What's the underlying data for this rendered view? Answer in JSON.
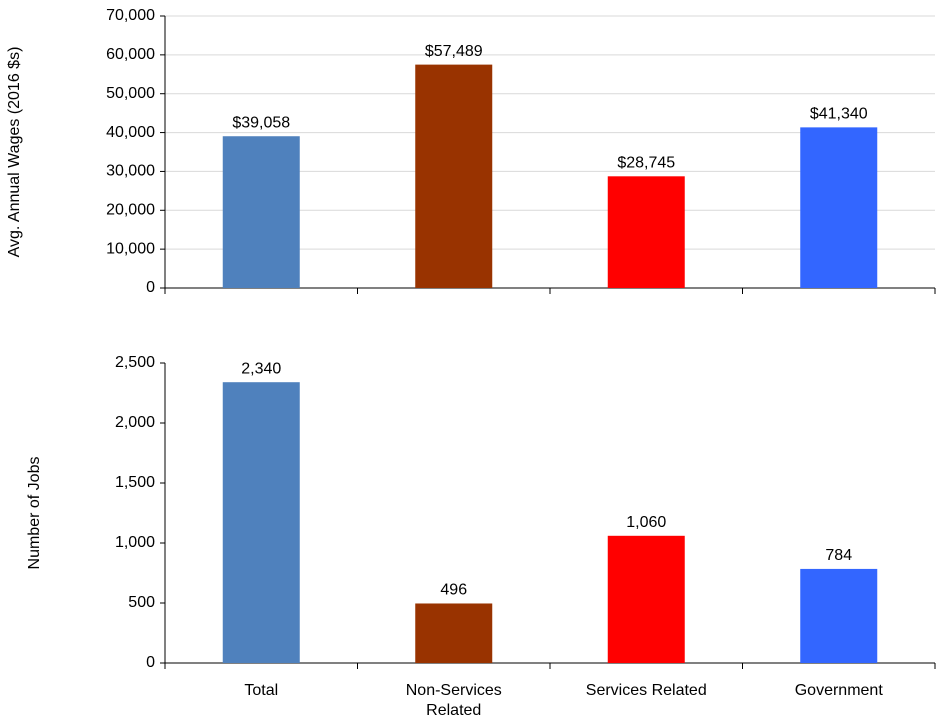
{
  "chart_data": [
    {
      "type": "bar",
      "y_label": "Avg. Annual Wages (2016 $s)",
      "categories": [
        null,
        null,
        null,
        null
      ],
      "values": [
        39058,
        57489,
        28745,
        41340
      ],
      "value_labels": [
        "$39,058",
        "$57,489",
        "$28,745",
        "$41,340"
      ],
      "colors": [
        "#4f81bd",
        "#993300",
        "#ff0000",
        "#3366ff"
      ],
      "ylim": [
        0,
        70000
      ],
      "yticks": [
        0,
        {
          "value": 10000,
          "label": "10,000"
        },
        {
          "value": 20000,
          "label": "20,000"
        },
        {
          "value": 30000,
          "label": "30,000"
        },
        {
          "value": 40000,
          "label": "40,000"
        },
        {
          "value": 50000,
          "label": "50,000"
        },
        {
          "value": 60000,
          "label": "60,000"
        },
        {
          "value": 70000,
          "label": "70,000"
        }
      ],
      "grid": true
    },
    {
      "type": "bar",
      "y_label": "Number of Jobs",
      "categories": [
        "Total",
        "Non-Services Related",
        "Services Related",
        "Government"
      ],
      "values": [
        2340,
        496,
        1060,
        784
      ],
      "value_labels": [
        "2,340",
        "496",
        "1,060",
        "784"
      ],
      "colors": [
        "#4f81bd",
        "#993300",
        "#ff0000",
        "#3366ff"
      ],
      "ylim": [
        0,
        2500
      ],
      "yticks": [
        0,
        500,
        {
          "value": 1000,
          "label": "1,000"
        },
        {
          "value": 1500,
          "label": "1,500"
        },
        {
          "value": 2000,
          "label": "2,000"
        },
        {
          "value": 2500,
          "label": "2,500"
        }
      ],
      "grid": false
    }
  ]
}
